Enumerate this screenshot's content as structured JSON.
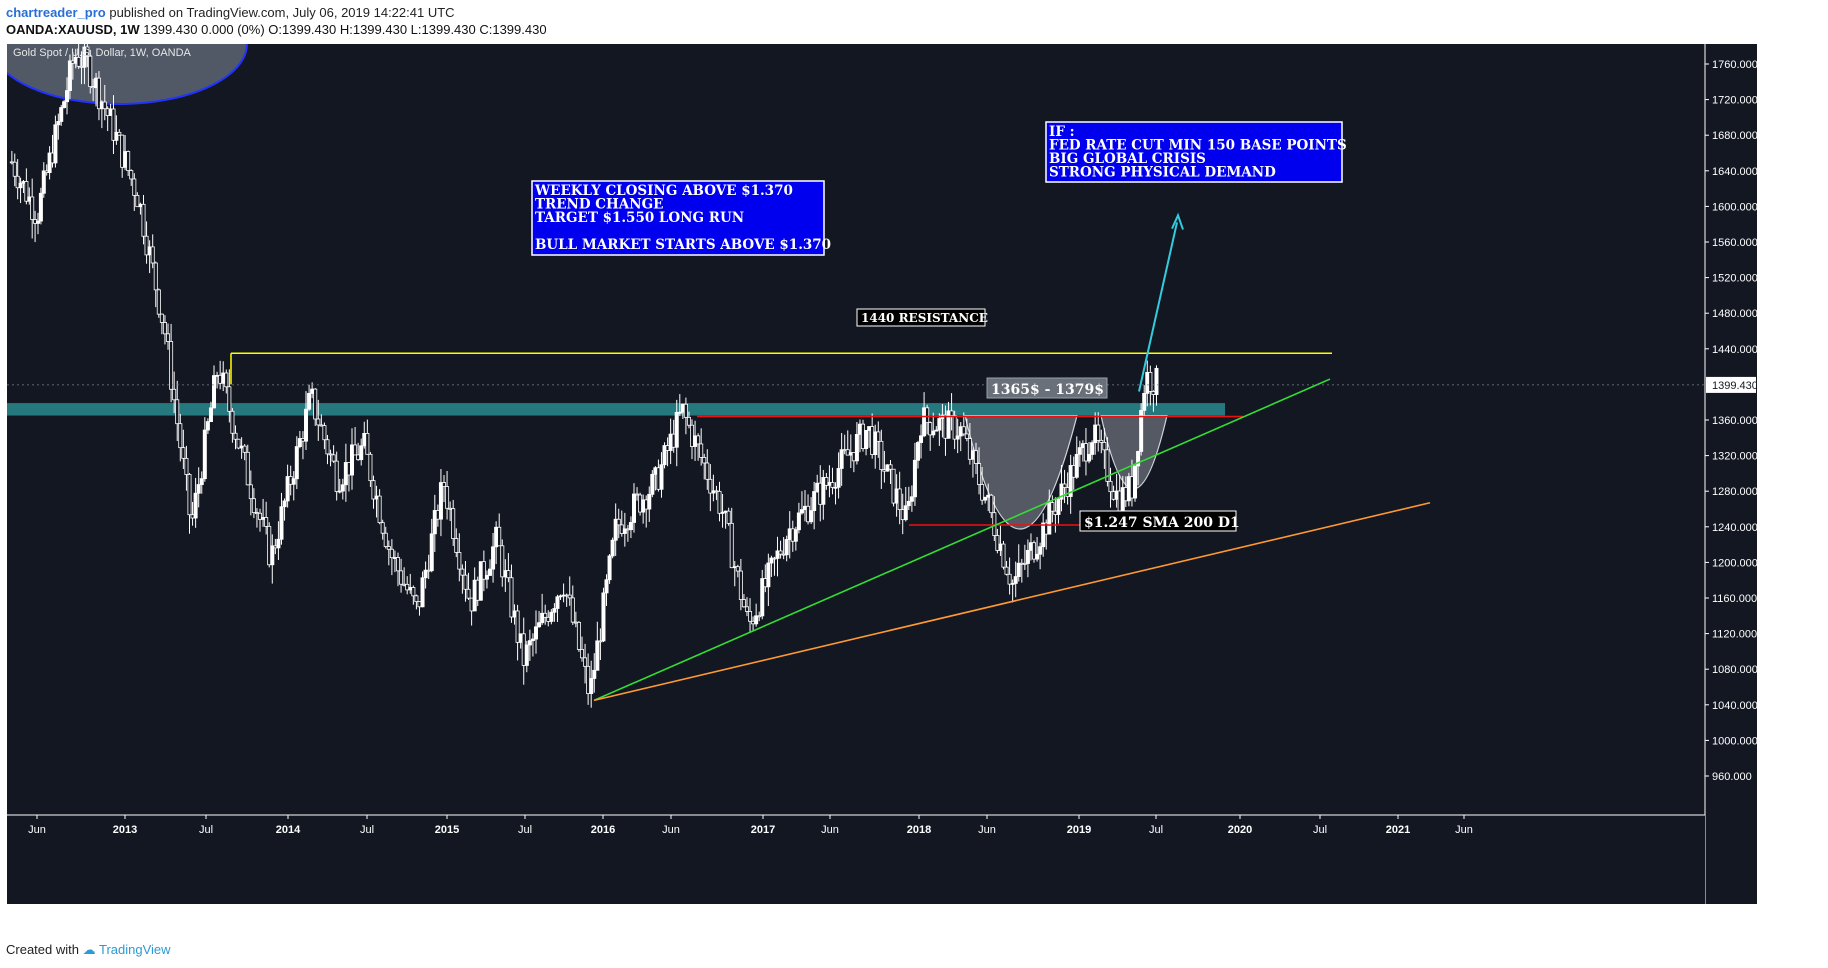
{
  "header": {
    "author": "chartreader_pro",
    "published": "published on TradingView.com, July 06, 2019 14:22:41 UTC",
    "symbol": "OANDA:XAUUSD, 1W",
    "ohlc": "1399.430 0.000 (0%) O:1399.430 H:1399.430 L:1399.430 C:1399.430"
  },
  "footer": {
    "created_label": "Created with",
    "brand": "TradingView"
  },
  "colors": {
    "background": "#131722",
    "candle": "#ffffff",
    "resistance": "#ffff00",
    "support_band": "#2a8a8f",
    "trend_green": "#33dd33",
    "trend_orange": "#ff9933",
    "red_level": "#ee1111",
    "arrow": "#33ccdd",
    "box_blue": "#0000ee"
  },
  "chart_data": {
    "type": "candlestick",
    "title": "Gold Spot / U.S. Dollar, 1W, OANDA",
    "xlabel": "",
    "ylabel": "",
    "ylim": [
      920,
      1780
    ],
    "y_ticks": [
      "1760.000",
      "1720.000",
      "1680.000",
      "1640.000",
      "1600.000",
      "1560.000",
      "1520.000",
      "1480.000",
      "1440.000",
      "1399.430",
      "1360.000",
      "1320.000",
      "1280.000",
      "1240.000",
      "1200.000",
      "1160.000",
      "1120.000",
      "1080.000",
      "1040.000",
      "1000.000",
      "960.000"
    ],
    "x_ticks": [
      "Jun",
      "2013",
      "Jul",
      "2014",
      "Jul",
      "2015",
      "Jul",
      "2016",
      "Jun",
      "2017",
      "Jun",
      "2018",
      "Jun",
      "2019",
      "Jul",
      "2020",
      "Jul",
      "2021",
      "Jun"
    ],
    "last_price": "1399.430",
    "price_path": [
      [
        "2012-04",
        1650
      ],
      [
        "2012-06",
        1590
      ],
      [
        "2012-09",
        1770
      ],
      [
        "2012-10",
        1760
      ],
      [
        "2012-12",
        1690
      ],
      [
        "2013-02",
        1610
      ],
      [
        "2013-04",
        1460
      ],
      [
        "2013-06",
        1240
      ],
      [
        "2013-07",
        1330
      ],
      [
        "2013-08",
        1420
      ],
      [
        "2013-10",
        1310
      ],
      [
        "2013-12",
        1205
      ],
      [
        "2014-03",
        1385
      ],
      [
        "2014-05",
        1295
      ],
      [
        "2014-07",
        1330
      ],
      [
        "2014-09",
        1210
      ],
      [
        "2014-11",
        1145
      ],
      [
        "2015-01",
        1290
      ],
      [
        "2015-03",
        1155
      ],
      [
        "2015-05",
        1225
      ],
      [
        "2015-07",
        1090
      ],
      [
        "2015-10",
        1180
      ],
      [
        "2015-12",
        1050
      ],
      [
        "2016-02",
        1240
      ],
      [
        "2016-05",
        1290
      ],
      [
        "2016-07",
        1370
      ],
      [
        "2016-10",
        1260
      ],
      [
        "2016-12",
        1128
      ],
      [
        "2017-03",
        1235
      ],
      [
        "2017-06",
        1290
      ],
      [
        "2017-09",
        1350
      ],
      [
        "2017-12",
        1245
      ],
      [
        "2018-01",
        1360
      ],
      [
        "2018-04",
        1350
      ],
      [
        "2018-06",
        1270
      ],
      [
        "2018-08",
        1175
      ],
      [
        "2018-10",
        1230
      ],
      [
        "2019-02",
        1345
      ],
      [
        "2019-04",
        1270
      ],
      [
        "2019-05",
        1285
      ],
      [
        "2019-06",
        1410
      ],
      [
        "2019-07",
        1399.43
      ]
    ],
    "annotations": [
      {
        "text": "1440 RESISTANCE",
        "price": 1435
      },
      {
        "text": "1365$ - 1379$",
        "range": [
          1365,
          1379
        ]
      },
      {
        "text": "$1.247 SMA 200 D1",
        "price": 1247
      }
    ],
    "boxes": {
      "weekly": [
        "WEEKLY CLOSING ABOVE $1.370",
        "TREND CHANGE",
        "TARGET $1.550 LONG RUN",
        "",
        "BULL MARKET STARTS ABOVE $1.370"
      ],
      "if": [
        "IF :",
        "FED RATE CUT MIN 150 BASE POINTS",
        "BIG GLOBAL CRISIS",
        "STRONG PHYSICAL DEMAND"
      ]
    }
  }
}
